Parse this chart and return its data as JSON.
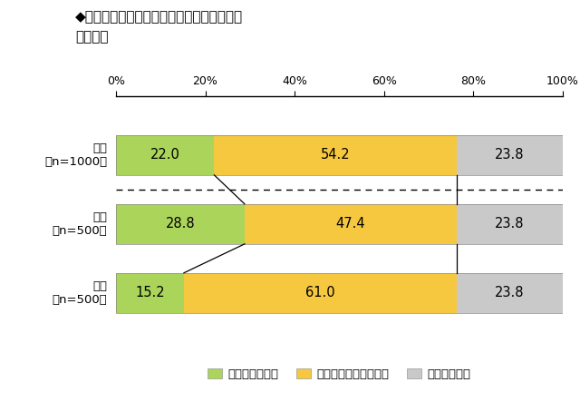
{
  "title_line1": "◆初恋は一目惜れだったか（単一回答形式）",
  "title_line2": "　男女別",
  "categories": [
    "全体\n『n=1000』",
    "男性\n『n=500』",
    "女性\n『n=500』"
  ],
  "series": [
    {
      "label": "一目惜れだった",
      "color": "#a8d060",
      "values": [
        22.0,
        28.8,
        15.2
      ]
    },
    {
      "label": "一目惜れではなかった",
      "color": "#f5c518",
      "values": [
        54.2,
        47.4,
        61.0
      ]
    },
    {
      "label": "覚えていない",
      "color": "#c8c8c8",
      "values": [
        23.8,
        23.8,
        23.8
      ]
    }
  ],
  "xlim": [
    0,
    100
  ],
  "xticks": [
    0,
    20,
    40,
    60,
    80,
    100
  ],
  "xtick_labels": [
    "0%",
    "20%",
    "40%",
    "60%",
    "80%",
    "100%"
  ],
  "bar_height": 0.58,
  "background_color": "#ffffff",
  "text_color": "#000000",
  "value_fontsize": 10.5,
  "label_fontsize": 9.5,
  "title_fontsize": 11,
  "legend_fontsize": 9.5
}
